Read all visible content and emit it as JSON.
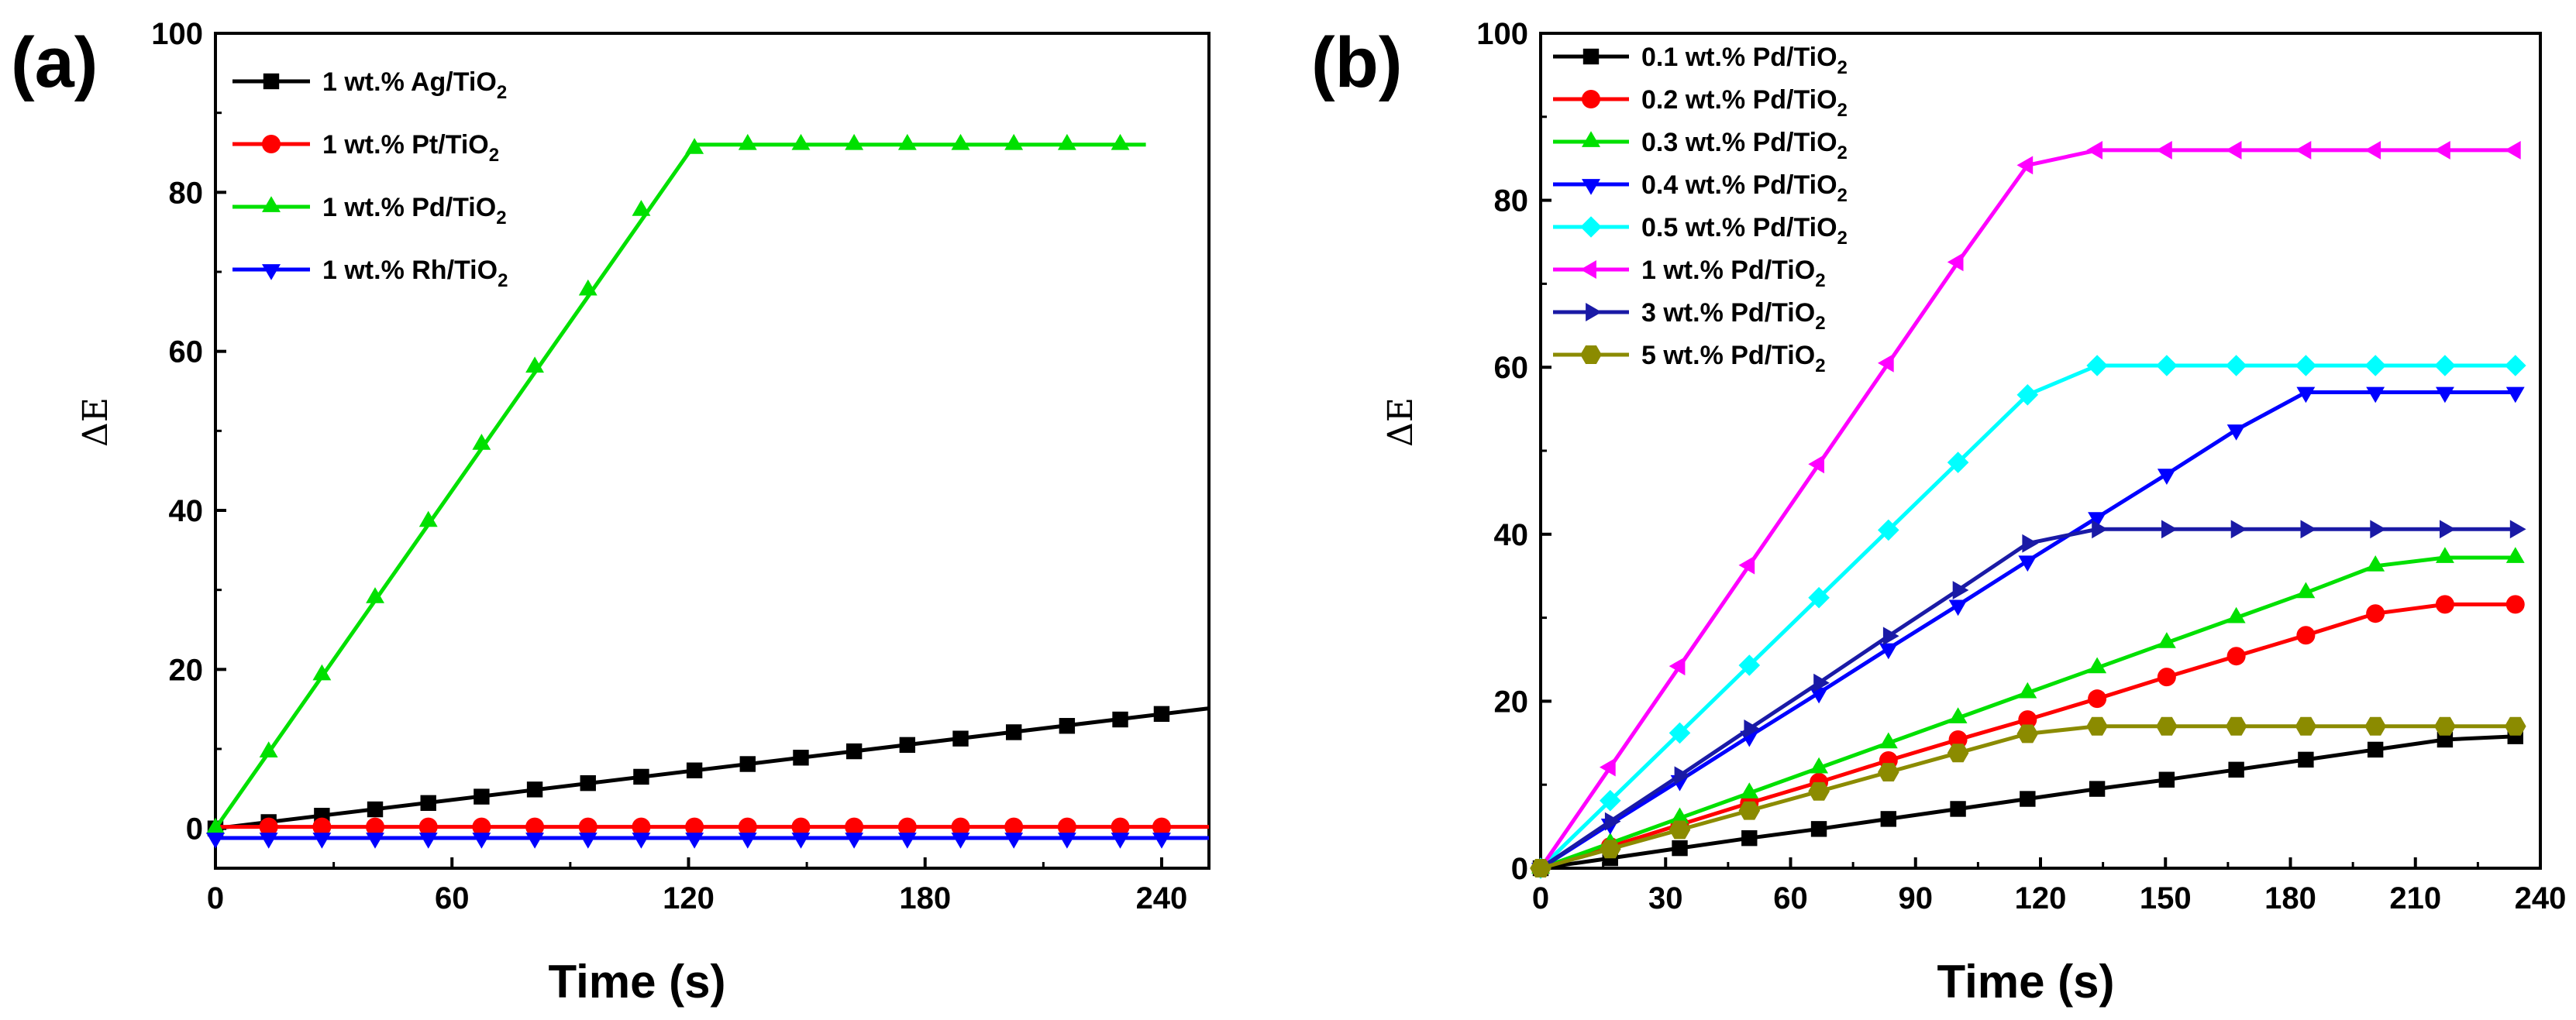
{
  "chart_data": [
    {
      "panel": "(a)",
      "type": "line",
      "xlabel": "Time (s)",
      "ylabel": "ΔE",
      "xlim": [
        0,
        252
      ],
      "ylim": [
        -5,
        100
      ],
      "xticks": [
        0,
        60,
        120,
        180,
        240
      ],
      "yticks": [
        0,
        20,
        40,
        60,
        80,
        100
      ],
      "legend_position": "top-left",
      "series": [
        {
          "name": "1 wt.% Ag/TiO2",
          "legend_prefix": "1 wt.% Ag/TiO",
          "subscript": "2",
          "color": "#000000",
          "marker": "square",
          "line_x": [
            0,
            252
          ],
          "line_y": [
            0,
            15.1
          ],
          "x": [
            0,
            13.5,
            27,
            40.5,
            54,
            67.5,
            81,
            94.5,
            108,
            121.5,
            135,
            148.5,
            162,
            175.5,
            189,
            202.5,
            216,
            229.5,
            240
          ],
          "y": [
            0,
            0.8,
            1.6,
            2.4,
            3.2,
            4.0,
            4.9,
            5.7,
            6.5,
            7.3,
            8.1,
            8.9,
            9.7,
            10.5,
            11.3,
            12.1,
            12.9,
            13.7,
            14.4
          ]
        },
        {
          "name": "1 wt.% Pt/TiO2",
          "legend_prefix": "1 wt.% Pt/TiO",
          "subscript": "2",
          "color": "#ff0000",
          "marker": "circle",
          "line_x": [
            0,
            252
          ],
          "line_y": [
            0.2,
            0.2
          ],
          "x": [
            13.5,
            27,
            40.5,
            54,
            67.5,
            81,
            94.5,
            108,
            121.5,
            135,
            148.5,
            162,
            175.5,
            189,
            202.5,
            216,
            229.5,
            240
          ],
          "y": [
            0.2,
            0.2,
            0.2,
            0.2,
            0.2,
            0.2,
            0.2,
            0.2,
            0.2,
            0.2,
            0.2,
            0.2,
            0.2,
            0.2,
            0.2,
            0.2,
            0.2,
            0.2
          ]
        },
        {
          "name": "1 wt.% Pd/TiO2",
          "legend_prefix": "1 wt.% Pd/TiO",
          "subscript": "2",
          "color": "#00e000",
          "marker": "triangle-up",
          "line_x": [
            0,
            121.5,
            236
          ],
          "line_y": [
            0,
            86,
            86
          ],
          "x": [
            0,
            13.5,
            27,
            40.5,
            54,
            67.5,
            81,
            94.5,
            108,
            121.5,
            135,
            148.5,
            162,
            175.5,
            189,
            202.5,
            216,
            229.5
          ],
          "y": [
            0,
            9.6,
            19.3,
            29.0,
            38.6,
            48.3,
            58.0,
            67.7,
            77.7,
            85.5,
            86,
            86,
            86,
            86,
            86,
            86,
            86,
            86
          ]
        },
        {
          "name": "1 wt.% Rh/TiO2",
          "legend_prefix": "1 wt.% Rh/TiO",
          "subscript": "2",
          "color": "#0000ff",
          "marker": "triangle-down",
          "line_x": [
            0,
            252
          ],
          "line_y": [
            -1.2,
            -1.2
          ],
          "x": [
            0,
            13.5,
            27,
            40.5,
            54,
            67.5,
            81,
            94.5,
            108,
            121.5,
            135,
            148.5,
            162,
            175.5,
            189,
            202.5,
            216,
            229.5,
            240
          ],
          "y": [
            -1.2,
            -1.2,
            -1.2,
            -1.2,
            -1.2,
            -1.2,
            -1.2,
            -1.2,
            -1.2,
            -1.2,
            -1.2,
            -1.2,
            -1.2,
            -1.2,
            -1.2,
            -1.2,
            -1.2,
            -1.2,
            -1.2
          ]
        }
      ]
    },
    {
      "panel": "(b)",
      "type": "line",
      "xlabel": "Time (s)",
      "ylabel": "ΔE",
      "xlim": [
        0,
        240
      ],
      "ylim": [
        0,
        100
      ],
      "xticks": [
        0,
        30,
        60,
        90,
        120,
        150,
        180,
        210,
        240
      ],
      "yticks": [
        0,
        20,
        40,
        60,
        80,
        100
      ],
      "legend_position": "top-left",
      "series": [
        {
          "name": "0.1 wt.% Pd/TiO2",
          "legend_prefix": "0.1 wt.% Pd/TiO",
          "subscript": "2",
          "color": "#000000",
          "marker": "square",
          "x": [
            0,
            16.7,
            33.4,
            50.1,
            66.8,
            83.5,
            100.2,
            116.9,
            133.6,
            150.3,
            167,
            183.7,
            200.4,
            217.1,
            234
          ],
          "y": [
            0,
            1.2,
            2.4,
            3.6,
            4.7,
            5.9,
            7.1,
            8.3,
            9.5,
            10.6,
            11.8,
            13.0,
            14.2,
            15.4,
            15.8
          ]
        },
        {
          "name": "0.2 wt.% Pd/TiO2",
          "legend_prefix": "0.2 wt.% Pd/TiO",
          "subscript": "2",
          "color": "#ff0000",
          "marker": "circle",
          "x": [
            0,
            16.7,
            33.4,
            50.1,
            66.8,
            83.5,
            100.2,
            116.9,
            133.6,
            150.3,
            167,
            183.7,
            200.4,
            217.1,
            234
          ],
          "y": [
            0,
            2.6,
            5.2,
            7.8,
            10.3,
            12.9,
            15.4,
            17.8,
            20.3,
            22.9,
            25.4,
            27.9,
            30.5,
            31.6,
            31.6
          ]
        },
        {
          "name": "0.3 wt.% Pd/TiO2",
          "legend_prefix": "0.3 wt.% Pd/TiO",
          "subscript": "2",
          "color": "#00e000",
          "marker": "triangle-up",
          "x": [
            0,
            16.7,
            33.4,
            50.1,
            66.8,
            83.5,
            100.2,
            116.9,
            133.6,
            150.3,
            167,
            183.7,
            200.4,
            217.1,
            234
          ],
          "y": [
            0,
            3.0,
            6.0,
            9.0,
            12.0,
            15.0,
            18.0,
            21.0,
            24.0,
            27.0,
            30.0,
            33.0,
            36.2,
            37.2,
            37.2
          ]
        },
        {
          "name": "0.4 wt.% Pd/TiO2",
          "legend_prefix": "0.4 wt.% Pd/TiO",
          "subscript": "2",
          "color": "#0000ff",
          "marker": "triangle-down",
          "x": [
            0,
            16.7,
            33.4,
            50.1,
            66.8,
            83.5,
            100.2,
            116.9,
            133.6,
            150.3,
            167,
            183.7,
            200.4,
            217.1,
            234
          ],
          "y": [
            0,
            5.3,
            10.5,
            15.8,
            21.0,
            26.3,
            31.5,
            36.8,
            42.0,
            47.2,
            52.5,
            57.0,
            57.0,
            57.0,
            57.0
          ]
        },
        {
          "name": "0.5 wt.% Pd/TiO2",
          "legend_prefix": "0.5 wt.% Pd/TiO",
          "subscript": "2",
          "color": "#00ffff",
          "marker": "diamond",
          "x": [
            0,
            16.7,
            33.4,
            50.1,
            66.8,
            83.5,
            100.2,
            116.9,
            133.6,
            150.3,
            167,
            183.7,
            200.4,
            217.1,
            234
          ],
          "y": [
            0,
            8.1,
            16.2,
            24.3,
            32.4,
            40.5,
            48.6,
            56.7,
            60.2,
            60.2,
            60.2,
            60.2,
            60.2,
            60.2,
            60.2
          ]
        },
        {
          "name": "1 wt.% Pd/TiO2",
          "legend_prefix": "1 wt.% Pd/TiO",
          "subscript": "2",
          "color": "#ff00ff",
          "marker": "triangle-left",
          "x": [
            0,
            16.7,
            33.4,
            50.1,
            66.8,
            83.5,
            100.2,
            116.9,
            133.6,
            150.3,
            167,
            183.7,
            200.4,
            217.1,
            234
          ],
          "y": [
            0,
            12.1,
            24.2,
            36.3,
            48.4,
            60.5,
            72.6,
            84.2,
            86,
            86,
            86,
            86,
            86,
            86,
            86
          ]
        },
        {
          "name": "3 wt.% Pd/TiO2",
          "legend_prefix": "3 wt.% Pd/TiO",
          "subscript": "2",
          "color": "#1a1aa6",
          "marker": "triangle-right",
          "x": [
            0,
            16.7,
            33.4,
            50.1,
            66.8,
            83.5,
            100.2,
            116.9,
            133.6,
            150.3,
            167,
            183.7,
            200.4,
            217.1,
            234
          ],
          "y": [
            0,
            5.6,
            11.1,
            16.7,
            22.2,
            27.8,
            33.3,
            38.9,
            40.6,
            40.6,
            40.6,
            40.6,
            40.6,
            40.6,
            40.6
          ]
        },
        {
          "name": "5 wt.% Pd/TiO2",
          "legend_prefix": "5 wt.% Pd/TiO",
          "subscript": "2",
          "color": "#8b8b00",
          "marker": "hexagon",
          "x": [
            0,
            16.7,
            33.4,
            50.1,
            66.8,
            83.5,
            100.2,
            116.9,
            133.6,
            150.3,
            167,
            183.7,
            200.4,
            217.1,
            234
          ],
          "y": [
            0,
            2.3,
            4.6,
            6.9,
            9.2,
            11.5,
            13.8,
            16.1,
            17.0,
            17.0,
            17.0,
            17.0,
            17.0,
            17.0,
            17.0
          ]
        }
      ]
    }
  ]
}
